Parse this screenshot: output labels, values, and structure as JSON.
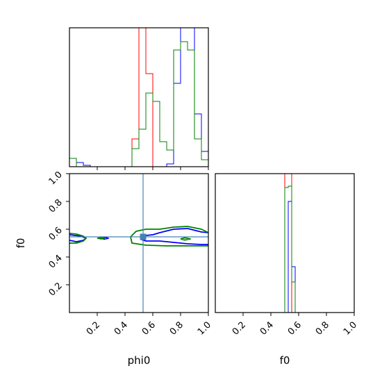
{
  "chart_data": {
    "type": "corner",
    "parameters": [
      "phi0",
      "f0"
    ],
    "truth": {
      "phi0": 0.53,
      "f0": 0.545
    },
    "truth_color": "#4682b4",
    "series": [
      {
        "color": "#0000ff"
      },
      {
        "color": "#ff0000"
      },
      {
        "color": "#008000"
      }
    ],
    "axes": {
      "phi0": {
        "lim": [
          0,
          1
        ],
        "ticks": [
          "0.2",
          "0.4",
          "0.6",
          "0.8",
          "1.0"
        ],
        "tick_values": [
          0.2,
          0.4,
          0.6,
          0.8,
          1.0
        ]
      },
      "f0": {
        "lim": [
          0,
          1
        ],
        "ticks": [
          "0.2",
          "0.4",
          "0.6",
          "0.8",
          "1.0"
        ],
        "tick_values": [
          0.2,
          0.4,
          0.6,
          0.8,
          1.0
        ]
      }
    },
    "hist_phi0": {
      "bin_edges": [
        0.0,
        0.05,
        0.1,
        0.15,
        0.2,
        0.25,
        0.3,
        0.35,
        0.4,
        0.45,
        0.5,
        0.55,
        0.6,
        0.65,
        0.7,
        0.75,
        0.8,
        0.85,
        0.9,
        0.95,
        1.0
      ],
      "ylim": [
        0,
        1.0
      ],
      "series_counts": [
        [
          0.06,
          0.03,
          0.01,
          0.0,
          0.0,
          0.0,
          0.0,
          0.0,
          0.0,
          0.0,
          0.0,
          0.0,
          0.0,
          0.0,
          0.02,
          0.6,
          1.1,
          1.0,
          0.38,
          0.11
        ],
        [
          0.0,
          0.0,
          0.0,
          0.0,
          0.0,
          0.0,
          0.0,
          0.0,
          0.0,
          0.2,
          1.2,
          0.67,
          0.0,
          0.0,
          0.0,
          0.0,
          0.0,
          0.0,
          0.0,
          0.0
        ],
        [
          0.06,
          0.0,
          0.0,
          0.0,
          0.0,
          0.0,
          0.0,
          0.0,
          0.0,
          0.13,
          0.27,
          0.53,
          0.47,
          0.18,
          0.12,
          0.84,
          0.9,
          0.84,
          0.2,
          0.05
        ]
      ]
    },
    "hist_f0": {
      "bin_edges": [
        0.5,
        0.525,
        0.55,
        0.575,
        0.6
      ],
      "ylim": [
        0,
        1.0
      ],
      "series_counts": [
        [
          0.0,
          0.8,
          0.33,
          0.0
        ],
        [
          1.2,
          1.2,
          0.0,
          0.0
        ],
        [
          0.9,
          0.91,
          0.22,
          0.0
        ]
      ]
    },
    "contours": [
      {
        "series": 0,
        "points": [
          [
            0.0,
            0.52
          ],
          [
            0.05,
            0.51
          ],
          [
            0.1,
            0.52
          ],
          [
            0.12,
            0.535
          ],
          [
            0.08,
            0.55
          ],
          [
            0.0,
            0.56
          ]
        ]
      },
      {
        "series": 0,
        "points": [
          [
            0.23,
            0.535
          ],
          [
            0.25,
            0.528
          ],
          [
            0.28,
            0.535
          ],
          [
            0.25,
            0.542
          ],
          [
            0.23,
            0.535
          ]
        ]
      },
      {
        "series": 0,
        "points": [
          [
            1.0,
            0.575
          ],
          [
            0.95,
            0.58
          ],
          [
            0.85,
            0.605
          ],
          [
            0.75,
            0.6
          ],
          [
            0.65,
            0.575
          ],
          [
            0.6,
            0.56
          ],
          [
            0.55,
            0.555
          ],
          [
            0.53,
            0.545
          ],
          [
            0.52,
            0.525
          ],
          [
            0.55,
            0.515
          ],
          [
            0.65,
            0.515
          ],
          [
            0.75,
            0.505
          ],
          [
            0.85,
            0.495
          ],
          [
            0.95,
            0.49
          ],
          [
            1.0,
            0.49
          ]
        ]
      },
      {
        "series": 1,
        "points": [
          [
            0.51,
            0.545
          ],
          [
            0.525,
            0.535
          ],
          [
            0.54,
            0.54
          ],
          [
            0.535,
            0.55
          ],
          [
            0.51,
            0.545
          ]
        ]
      },
      {
        "series": 2,
        "points": [
          [
            0.0,
            0.5
          ],
          [
            0.05,
            0.5
          ],
          [
            0.1,
            0.515
          ],
          [
            0.12,
            0.535
          ],
          [
            0.1,
            0.55
          ],
          [
            0.05,
            0.565
          ],
          [
            0.0,
            0.57
          ]
        ]
      },
      {
        "series": 2,
        "points": [
          [
            0.2,
            0.535
          ],
          [
            0.23,
            0.53
          ],
          [
            0.25,
            0.535
          ],
          [
            0.23,
            0.54
          ],
          [
            0.2,
            0.535
          ]
        ]
      },
      {
        "series": 2,
        "points": [
          [
            1.0,
            0.575
          ],
          [
            0.95,
            0.6
          ],
          [
            0.85,
            0.62
          ],
          [
            0.75,
            0.615
          ],
          [
            0.65,
            0.6
          ],
          [
            0.55,
            0.6
          ],
          [
            0.48,
            0.585
          ],
          [
            0.44,
            0.545
          ],
          [
            0.45,
            0.5
          ],
          [
            0.55,
            0.485
          ],
          [
            0.7,
            0.48
          ],
          [
            0.85,
            0.48
          ],
          [
            1.0,
            0.48
          ]
        ]
      },
      {
        "series": 2,
        "points": [
          [
            0.8,
            0.53
          ],
          [
            0.83,
            0.522
          ],
          [
            0.87,
            0.53
          ],
          [
            0.83,
            0.538
          ],
          [
            0.8,
            0.53
          ]
        ]
      }
    ]
  }
}
